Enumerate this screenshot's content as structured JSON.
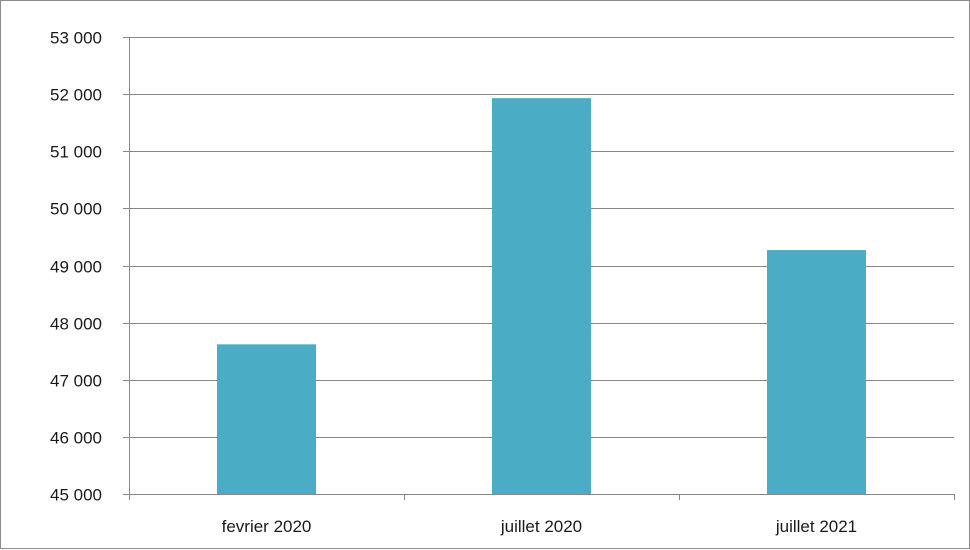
{
  "chart_data": {
    "type": "bar",
    "categories": [
      "fevrier 2020",
      "juillet 2020",
      "juillet 2021"
    ],
    "values": [
      47620,
      51930,
      49270
    ],
    "ylim": [
      45000,
      53000
    ],
    "y_ticks": [
      45000,
      46000,
      47000,
      48000,
      49000,
      50000,
      51000,
      52000,
      53000
    ],
    "y_tick_labels": [
      "45 000",
      "46 000",
      "47 000",
      "48 000",
      "49 000",
      "50 000",
      "51 000",
      "52 000",
      "53 000"
    ],
    "grid": true,
    "legend": "none",
    "colors": {
      "bar": "#4BACC6",
      "grid": "#878787",
      "axis": "#878787"
    }
  }
}
